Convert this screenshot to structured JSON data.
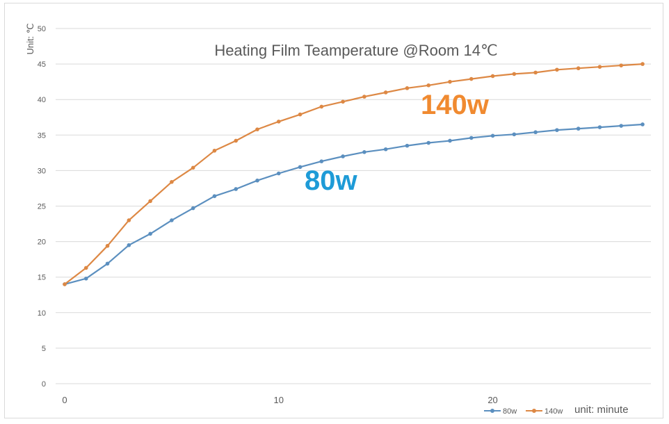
{
  "chart_data": {
    "type": "line",
    "title": "Heating Film Teamperature @Room 14℃",
    "ylabel": "Unit: ℃",
    "xlabel": "unit: minute",
    "xlim": [
      0,
      27
    ],
    "ylim": [
      0,
      50
    ],
    "yticks": [
      0,
      5,
      10,
      15,
      20,
      25,
      30,
      35,
      40,
      45,
      50
    ],
    "xticks": [
      0,
      10,
      20
    ],
    "grid": true,
    "legend_position": "bottom-right",
    "x": [
      0,
      1,
      2,
      3,
      4,
      5,
      6,
      7,
      8,
      9,
      10,
      11,
      12,
      13,
      14,
      15,
      16,
      17,
      18,
      19,
      20,
      21,
      22,
      23,
      24,
      25,
      26,
      27
    ],
    "series": [
      {
        "name": "80w",
        "color": "#5b8fbf",
        "label": "80w",
        "label_color": "#1e9bd7",
        "values": [
          14.0,
          14.8,
          16.9,
          19.5,
          21.1,
          23.0,
          24.7,
          26.4,
          27.4,
          28.6,
          29.6,
          30.5,
          31.3,
          32.0,
          32.6,
          33.0,
          33.5,
          33.9,
          34.2,
          34.6,
          34.9,
          35.1,
          35.4,
          35.7,
          35.9,
          36.1,
          36.3,
          36.5
        ]
      },
      {
        "name": "140w",
        "color": "#dd8844",
        "label": "140w",
        "label_color": "#f08a30",
        "values": [
          14.0,
          16.3,
          19.4,
          23.0,
          25.7,
          28.4,
          30.4,
          32.8,
          34.2,
          35.8,
          36.9,
          37.9,
          39.0,
          39.7,
          40.4,
          41.0,
          41.6,
          42.0,
          42.5,
          42.9,
          43.3,
          43.6,
          43.8,
          44.2,
          44.4,
          44.6,
          44.8,
          45.0
        ]
      }
    ]
  }
}
